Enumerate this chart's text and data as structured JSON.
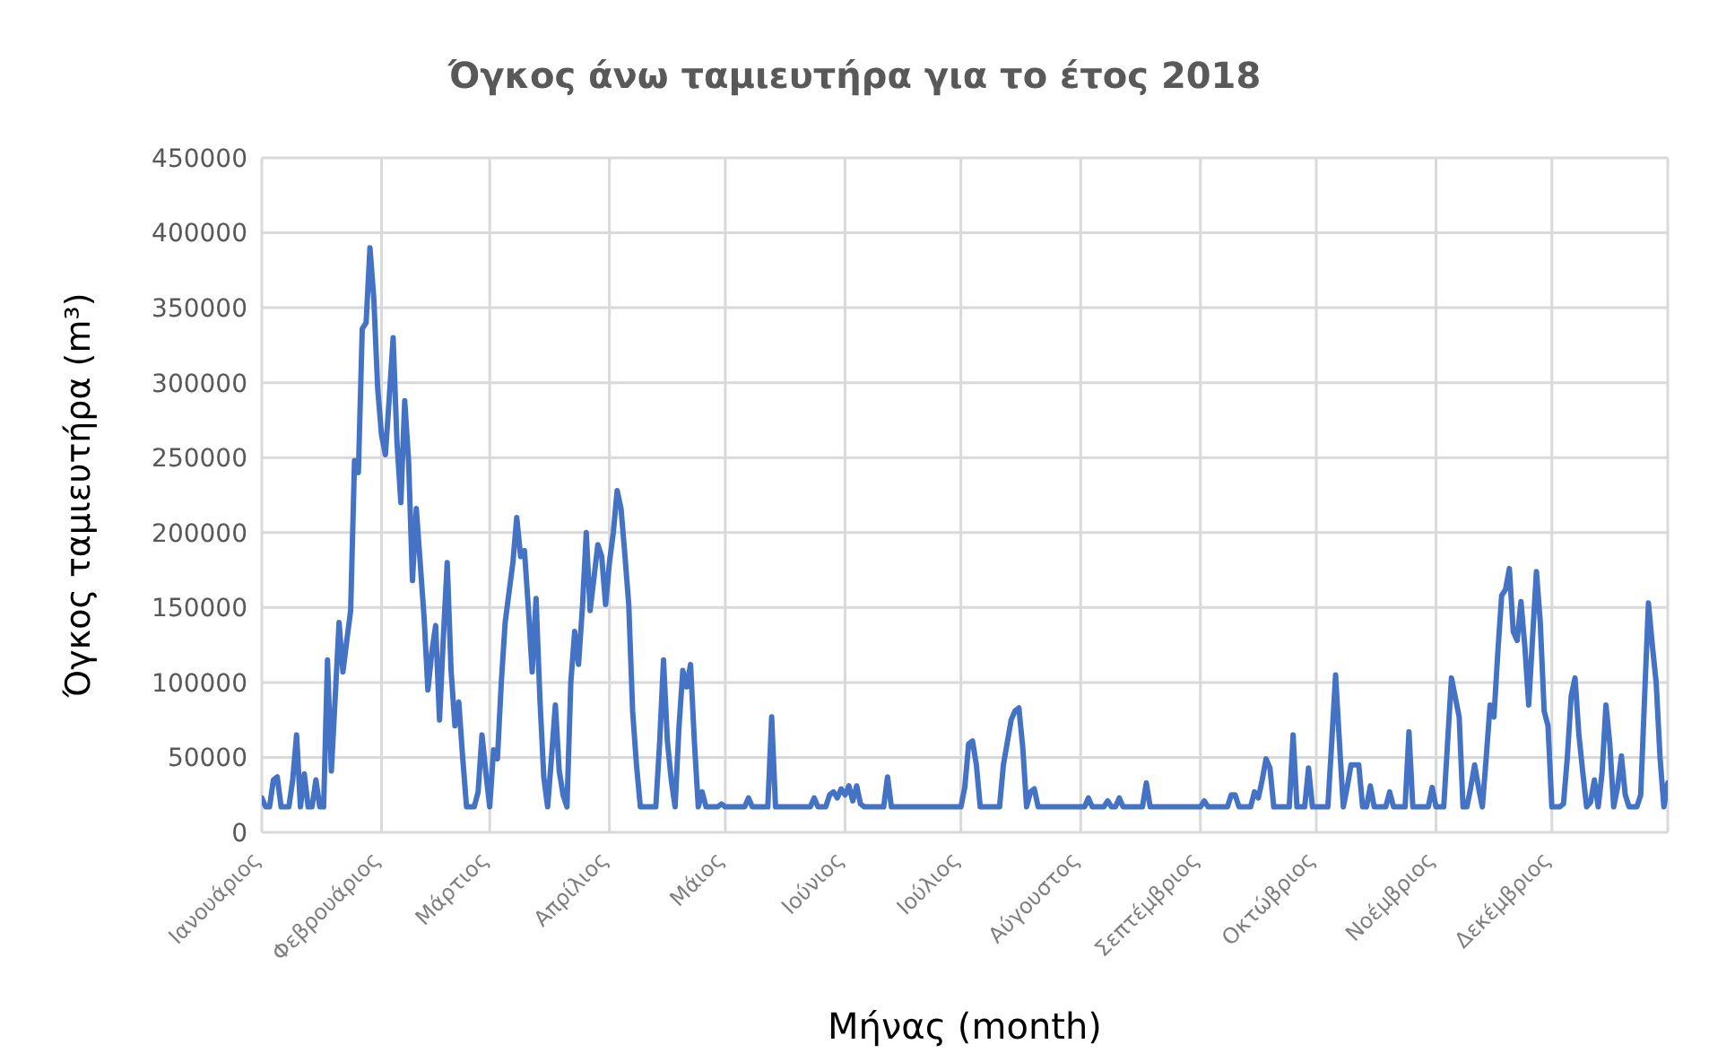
{
  "chart_data": {
    "type": "line",
    "title": "Όγκος άνω ταμιευτήρα για το έτος 2018",
    "xlabel": "Μήνας (month)",
    "ylabel": "Όγκος ταμιευτήρα (m³)",
    "categories": [
      "Ιανουάριος",
      null,
      null,
      null,
      null,
      null,
      null,
      null,
      null,
      null,
      null,
      null,
      null,
      null,
      null,
      null,
      null,
      null,
      null,
      null,
      null,
      null,
      null,
      null,
      null,
      null,
      null,
      null,
      null,
      null,
      null,
      "Φεβρουάριος",
      null,
      null,
      null,
      null,
      null,
      null,
      null,
      null,
      null,
      null,
      null,
      null,
      null,
      null,
      null,
      null,
      null,
      null,
      null,
      null,
      null,
      null,
      null,
      null,
      null,
      null,
      null,
      "Μάρτιος",
      null,
      null,
      null,
      null,
      null,
      null,
      null,
      null,
      null,
      null,
      null,
      null,
      null,
      null,
      null,
      null,
      null,
      null,
      null,
      null,
      null,
      null,
      null,
      null,
      null,
      null,
      null,
      null,
      null,
      null,
      "Απρίλιος",
      null,
      null,
      null,
      null,
      null,
      null,
      null,
      null,
      null,
      null,
      null,
      null,
      null,
      null,
      null,
      null,
      null,
      null,
      null,
      null,
      null,
      null,
      null,
      null,
      null,
      null,
      null,
      null,
      null,
      "Μάιος",
      null,
      null,
      null,
      null,
      null,
      null,
      null,
      null,
      null,
      null,
      null,
      null,
      null,
      null,
      null,
      null,
      null,
      null,
      null,
      null,
      null,
      null,
      null,
      null,
      null,
      null,
      null,
      null,
      null,
      null,
      "Ιούνιος",
      null,
      null,
      null,
      null,
      null,
      null,
      null,
      null,
      null,
      null,
      null,
      null,
      null,
      null,
      null,
      null,
      null,
      null,
      null,
      null,
      null,
      null,
      null,
      null,
      null,
      null,
      null,
      null,
      null,
      "Ιούλιος",
      null,
      null,
      null,
      null,
      null,
      null,
      null,
      null,
      null,
      null,
      null,
      null,
      null,
      null,
      null,
      null,
      null,
      null,
      null,
      null,
      null,
      null,
      null,
      null,
      null,
      null,
      null,
      null,
      null,
      null,
      "Αύγουστος",
      null,
      null,
      null,
      null,
      null,
      null,
      null,
      null,
      null,
      null,
      null,
      null,
      null,
      null,
      null,
      null,
      null,
      null,
      null,
      null,
      null,
      null,
      null,
      null,
      null,
      null,
      null,
      null,
      null,
      null,
      "Σεπτέμβριος",
      null,
      null,
      null,
      null,
      null,
      null,
      null,
      null,
      null,
      null,
      null,
      null,
      null,
      null,
      null,
      null,
      null,
      null,
      null,
      null,
      null,
      null,
      null,
      null,
      null,
      null,
      null,
      null,
      null,
      "Οκτώβριος",
      null,
      null,
      null,
      null,
      null,
      null,
      null,
      null,
      null,
      null,
      null,
      null,
      null,
      null,
      null,
      null,
      null,
      null,
      null,
      null,
      null,
      null,
      null,
      null,
      null,
      null,
      null,
      null,
      null,
      null,
      "Νοέμβριος",
      null,
      null,
      null,
      null,
      null,
      null,
      null,
      null,
      null,
      null,
      null,
      null,
      null,
      null,
      null,
      null,
      null,
      null,
      null,
      null,
      null,
      null,
      null,
      null,
      null,
      null,
      null,
      null,
      null,
      "Δεκέμβριος",
      null,
      null,
      null,
      null,
      null,
      null,
      null,
      null,
      null,
      null,
      null,
      null,
      null,
      null,
      null,
      null,
      null,
      null,
      null,
      null,
      null,
      null,
      null,
      null,
      null,
      null,
      null,
      null,
      null,
      null
    ],
    "ylim": [
      0,
      450000
    ],
    "yticks": [
      0,
      50000,
      100000,
      150000,
      200000,
      250000,
      300000,
      350000,
      400000,
      450000
    ],
    "grid": true,
    "marker": "none",
    "line_style": "solid",
    "legend": false,
    "series": [
      {
        "color": "#4472c4",
        "values": [
          23000,
          17000,
          17000,
          35000,
          37000,
          17000,
          17000,
          17000,
          35000,
          65000,
          17000,
          39000,
          17000,
          17000,
          35000,
          17000,
          17000,
          115000,
          41000,
          90000,
          140000,
          107000,
          128000,
          148000,
          248000,
          240000,
          336000,
          340000,
          390000,
          356000,
          296000,
          265000,
          252000,
          290000,
          330000,
          260000,
          220000,
          288000,
          248000,
          168000,
          216000,
          180000,
          144000,
          95000,
          120000,
          138000,
          75000,
          130000,
          180000,
          108000,
          71000,
          87000,
          50000,
          17000,
          17000,
          17000,
          27000,
          65000,
          40000,
          17000,
          55000,
          49000,
          100000,
          140000,
          160000,
          180000,
          210000,
          184000,
          188000,
          150000,
          107000,
          156000,
          89000,
          37000,
          17000,
          50000,
          85000,
          41000,
          25000,
          17000,
          100000,
          134000,
          112000,
          150000,
          200000,
          148000,
          170000,
          192000,
          184000,
          152000,
          180000,
          200000,
          228000,
          216000,
          185000,
          152000,
          81000,
          45000,
          17000,
          17000,
          17000,
          17000,
          17000,
          60000,
          115000,
          61000,
          35000,
          17000,
          70000,
          108000,
          97000,
          112000,
          60000,
          17000,
          27000,
          17000,
          17000,
          17000,
          17000,
          19000,
          17000,
          17000,
          17000,
          17000,
          17000,
          17000,
          23000,
          17000,
          17000,
          17000,
          17000,
          17000,
          77000,
          17000,
          17000,
          17000,
          17000,
          17000,
          17000,
          17000,
          17000,
          17000,
          17000,
          23000,
          17000,
          17000,
          17000,
          25000,
          27000,
          23000,
          29000,
          25000,
          31000,
          21000,
          31000,
          19000,
          17000,
          17000,
          17000,
          17000,
          17000,
          17000,
          37000,
          17000,
          17000,
          17000,
          17000,
          17000,
          17000,
          17000,
          17000,
          17000,
          17000,
          17000,
          17000,
          17000,
          17000,
          17000,
          17000,
          17000,
          17000,
          17000,
          30000,
          59000,
          61000,
          45000,
          17000,
          17000,
          17000,
          17000,
          17000,
          17000,
          45000,
          60000,
          75000,
          81000,
          83000,
          57000,
          17000,
          27000,
          29000,
          17000,
          17000,
          17000,
          17000,
          17000,
          17000,
          17000,
          17000,
          17000,
          17000,
          17000,
          17000,
          17000,
          23000,
          17000,
          17000,
          17000,
          17000,
          21000,
          17000,
          17000,
          23000,
          17000,
          17000,
          17000,
          17000,
          17000,
          17000,
          33000,
          17000,
          17000,
          17000,
          17000,
          17000,
          17000,
          17000,
          17000,
          17000,
          17000,
          17000,
          17000,
          17000,
          17000,
          21000,
          17000,
          17000,
          17000,
          17000,
          17000,
          17000,
          25000,
          25000,
          17000,
          17000,
          17000,
          17000,
          27000,
          23000,
          35000,
          49000,
          43000,
          17000,
          17000,
          17000,
          17000,
          17000,
          65000,
          17000,
          17000,
          17000,
          43000,
          17000,
          17000,
          17000,
          17000,
          17000,
          60000,
          105000,
          60000,
          17000,
          30000,
          45000,
          45000,
          45000,
          17000,
          17000,
          31000,
          17000,
          17000,
          17000,
          17000,
          27000,
          17000,
          17000,
          17000,
          17000,
          67000,
          17000,
          17000,
          17000,
          17000,
          17000,
          30000,
          17000,
          17000,
          17000,
          60000,
          103000,
          90000,
          77000,
          17000,
          17000,
          30000,
          45000,
          30000,
          17000,
          50000,
          85000,
          77000,
          120000,
          158000,
          162000,
          176000,
          134000,
          128000,
          154000,
          124000,
          85000,
          130000,
          174000,
          140000,
          81000,
          71000,
          17000,
          17000,
          17000,
          19000,
          50000,
          91000,
          103000,
          65000,
          40000,
          17000,
          20000,
          35000,
          17000,
          40000,
          85000,
          59000,
          17000,
          30000,
          51000,
          25000,
          17000,
          17000,
          17000,
          25000,
          90000,
          153000,
          125000,
          100000,
          50000,
          17000,
          33000
        ]
      }
    ]
  }
}
